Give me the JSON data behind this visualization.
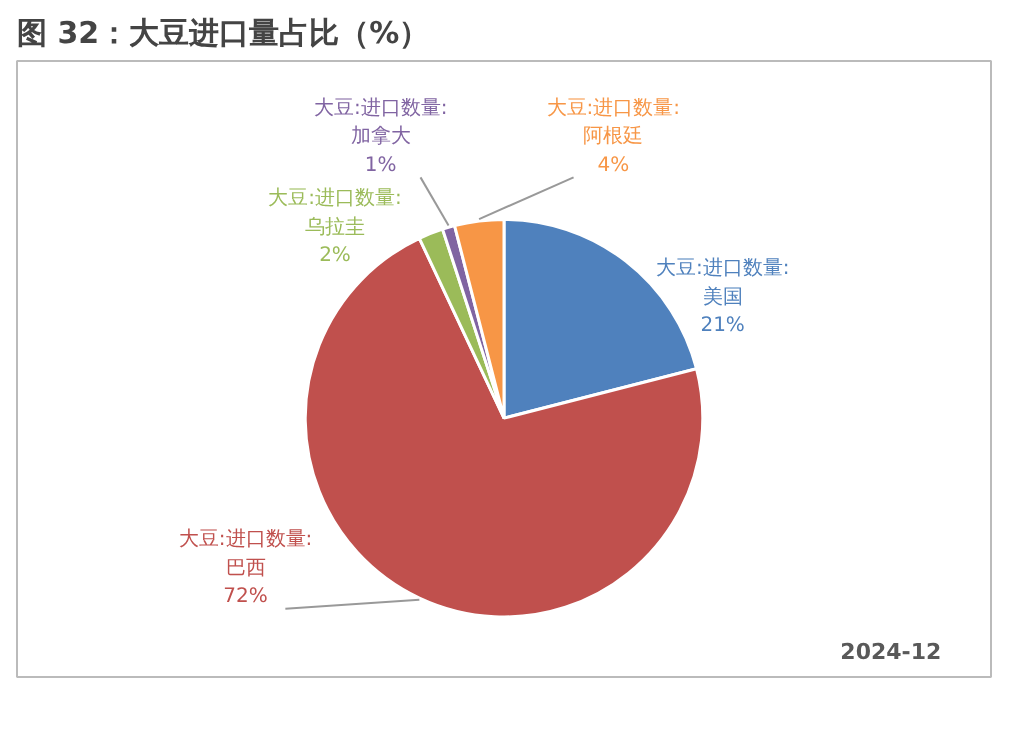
{
  "chart_data": {
    "type": "pie",
    "title": "图 32：大豆进口量占比（%）",
    "categories": [
      "大豆:进口数量:美国",
      "大豆:进口数量:巴西",
      "大豆:进口数量:乌拉圭",
      "大豆:进口数量:加拿大",
      "大豆:进口数量:阿根廷"
    ],
    "values": [
      21,
      72,
      2,
      1,
      4
    ],
    "colors": [
      "#4f81bd",
      "#c0504d",
      "#9bbb59",
      "#8064a2",
      "#f79646"
    ],
    "value_labels": [
      "21%",
      "72%",
      "2%",
      "1%",
      "4%"
    ],
    "annotations": [
      "2024-12"
    ]
  }
}
